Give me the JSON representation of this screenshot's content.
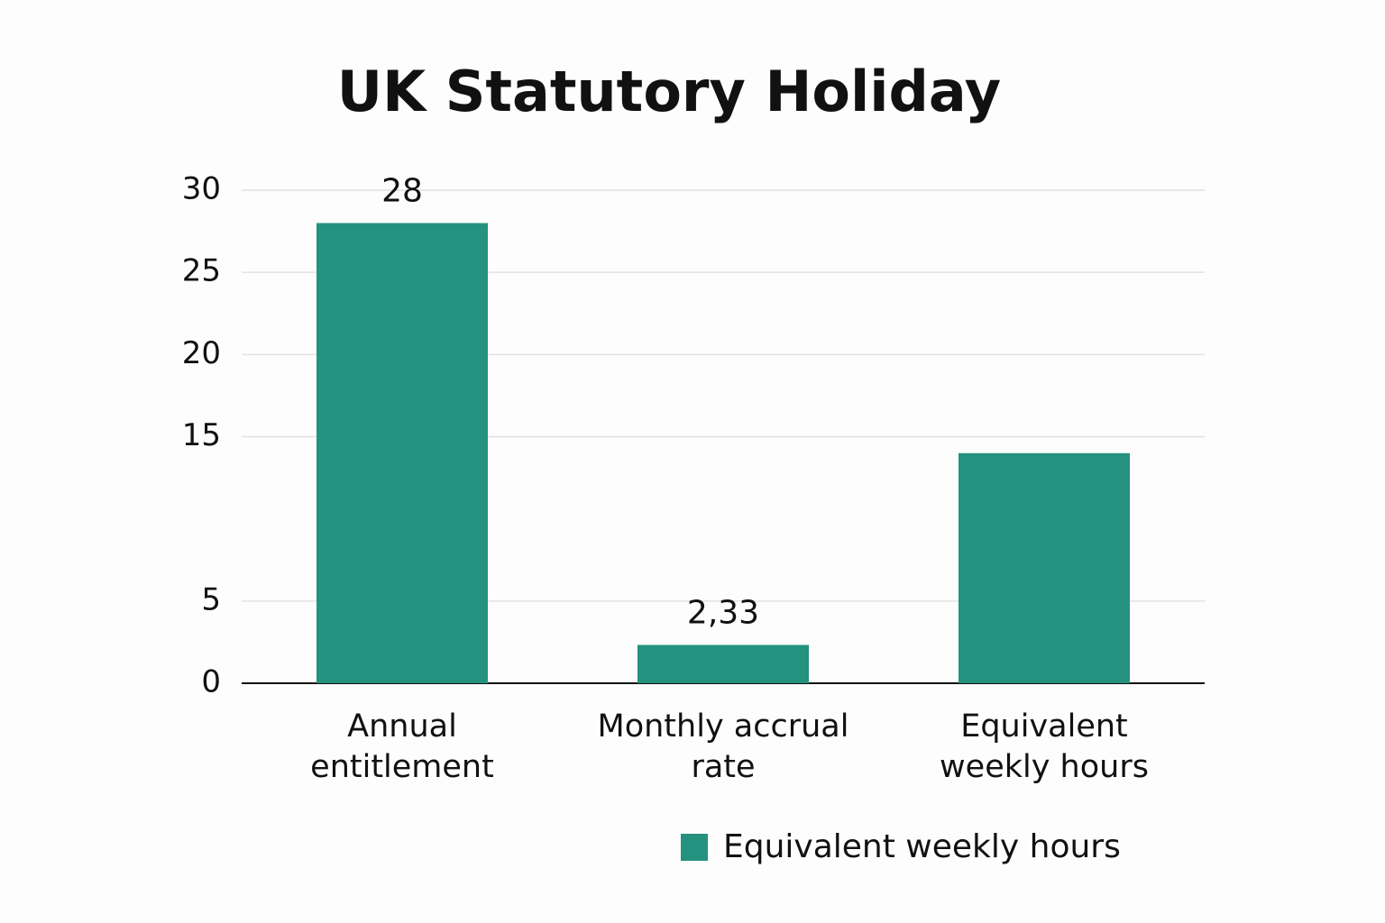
{
  "chart_data": {
    "type": "bar",
    "title": "UK Statutory Holiday",
    "categories": [
      "Annual entitlement",
      "Monthly accrual rate",
      "Equivalent weekly hours"
    ],
    "series": [
      {
        "name": "Equivalent weekly hours",
        "color": "#25917f",
        "values": [
          28,
          2.33,
          14
        ],
        "value_labels": [
          "28",
          "2,33",
          null
        ]
      }
    ],
    "ylim": [
      0,
      30
    ],
    "yticks": [
      0,
      5,
      15,
      20,
      25,
      30
    ],
    "grid": true,
    "legend": "bottom"
  }
}
